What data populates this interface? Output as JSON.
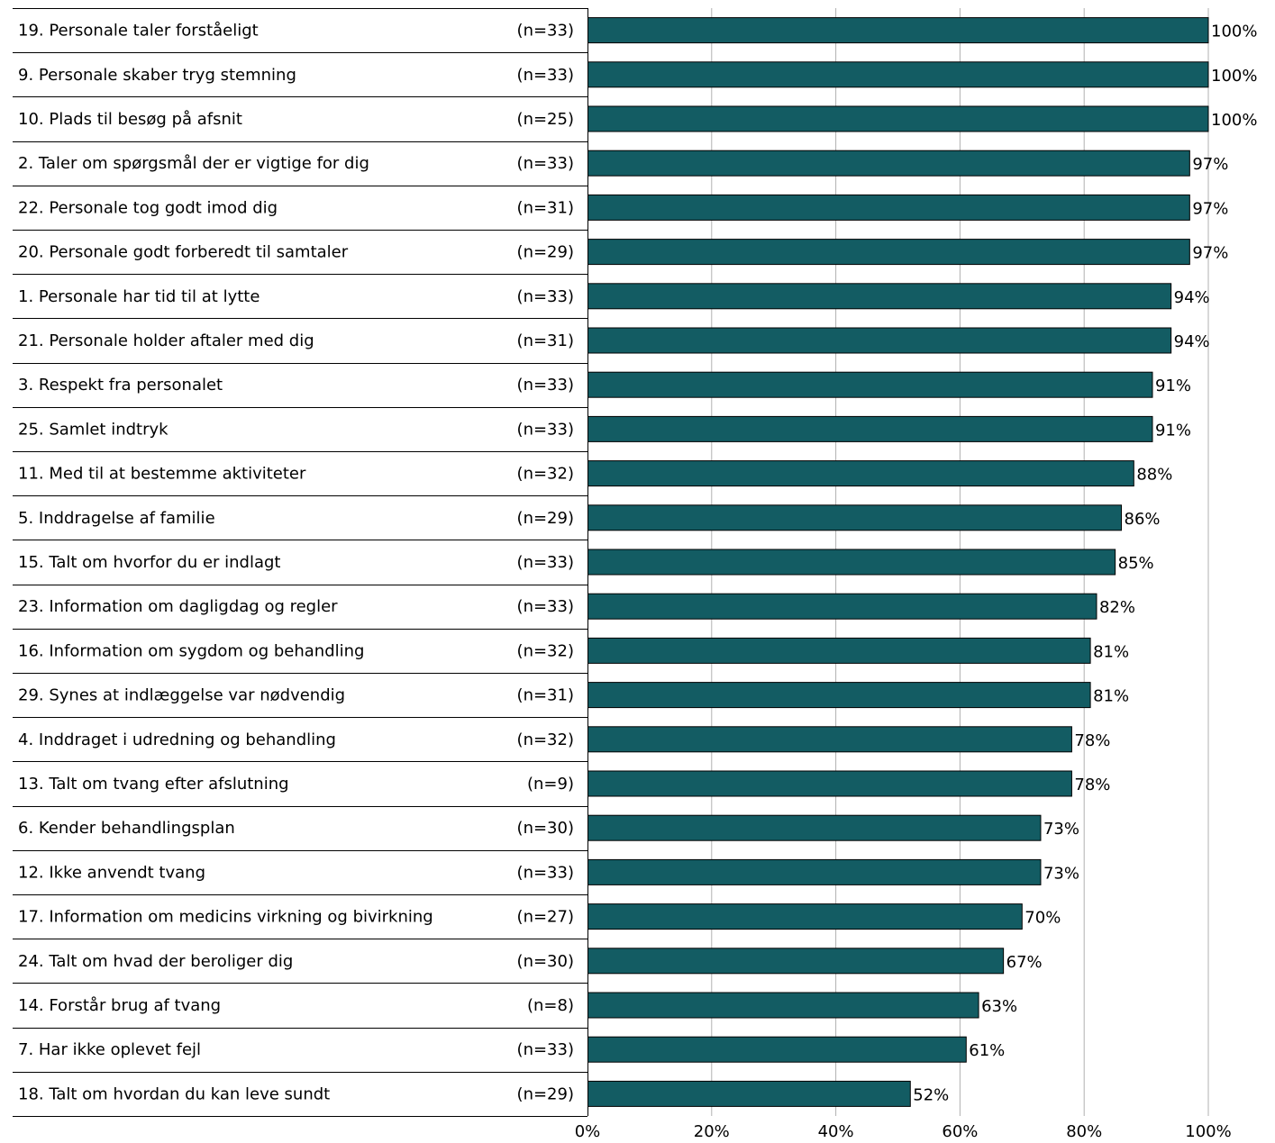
{
  "chart_data": {
    "type": "bar",
    "orientation": "horizontal",
    "xlim": [
      0,
      100
    ],
    "x_ticks": [
      "0%",
      "20%",
      "40%",
      "60%",
      "80%",
      "100%"
    ],
    "grid": "vertical",
    "bar_color": "#135C63",
    "categories": [
      "19. Personale taler forståeligt",
      "9. Personale skaber tryg stemning",
      "10. Plads til besøg på afsnit",
      "2. Taler om spørgsmål der er vigtige for dig",
      "22. Personale tog godt imod dig",
      "20. Personale godt forberedt til samtaler",
      "1. Personale har tid til at lytte",
      "21. Personale holder aftaler med dig",
      "3. Respekt fra personalet",
      "25. Samlet indtryk",
      "11. Med til at bestemme aktiviteter",
      "5. Inddragelse af familie",
      "15. Talt om hvorfor du er indlagt",
      "23. Information om dagligdag og regler",
      "16. Information om sygdom og behandling",
      "29. Synes at indlæggelse var nødvendig",
      "4. Inddraget i udredning og behandling",
      "13. Talt om tvang efter afslutning",
      "6. Kender behandlingsplan",
      "12. Ikke anvendt tvang",
      "17. Information om medicins virkning og bivirkning",
      "24. Talt om hvad der beroliger dig",
      "14. Forstår brug af tvang",
      "7. Har ikke oplevet fejl",
      "18. Talt om hvordan du kan leve sundt"
    ],
    "n": [
      "(n=33)",
      "(n=33)",
      "(n=25)",
      "(n=33)",
      "(n=31)",
      "(n=29)",
      "(n=33)",
      "(n=31)",
      "(n=33)",
      "(n=33)",
      "(n=32)",
      "(n=29)",
      "(n=33)",
      "(n=33)",
      "(n=32)",
      "(n=31)",
      "(n=32)",
      "(n=9)",
      "(n=30)",
      "(n=33)",
      "(n=27)",
      "(n=30)",
      "(n=8)",
      "(n=33)",
      "(n=29)"
    ],
    "values": [
      100,
      100,
      100,
      97,
      97,
      97,
      94,
      94,
      91,
      91,
      88,
      86,
      85,
      82,
      81,
      81,
      78,
      78,
      73,
      73,
      70,
      67,
      63,
      61,
      52
    ],
    "value_labels": [
      "100%",
      "100%",
      "100%",
      "97%",
      "97%",
      "97%",
      "94%",
      "94%",
      "91%",
      "91%",
      "88%",
      "86%",
      "85%",
      "82%",
      "81%",
      "81%",
      "78%",
      "78%",
      "73%",
      "73%",
      "70%",
      "67%",
      "63%",
      "61%",
      "52%"
    ]
  }
}
